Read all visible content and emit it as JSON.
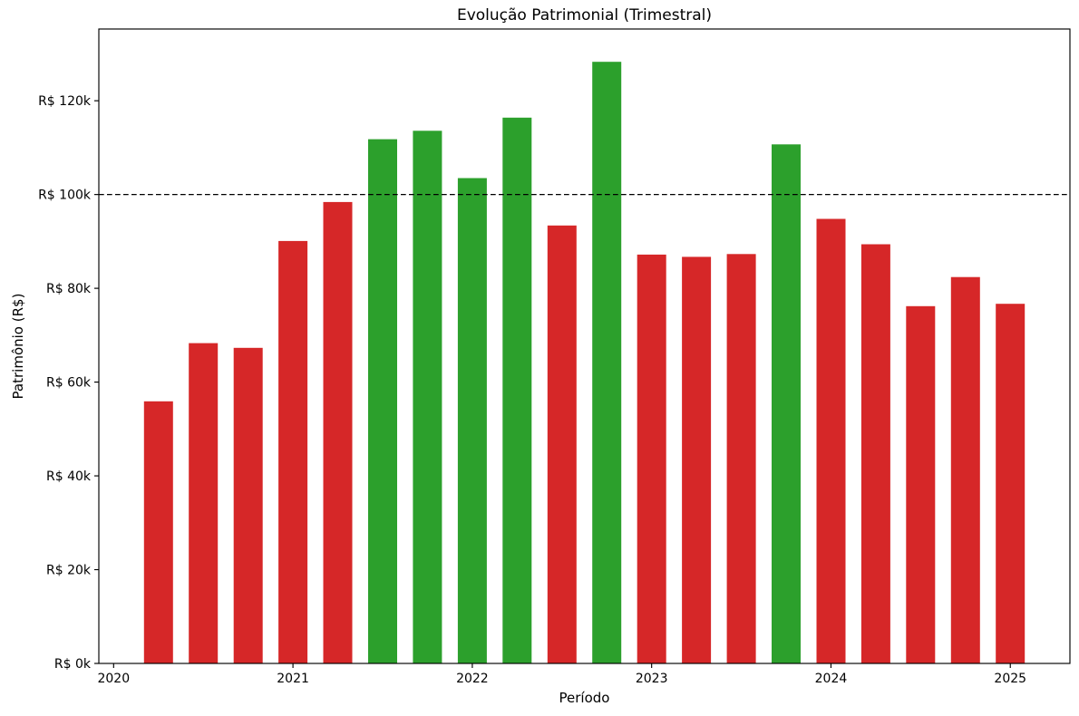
{
  "figure": {
    "background": "#ffffff"
  },
  "chart_data": {
    "type": "bar",
    "title": "Evolução Patrimonial (Trimestral)",
    "xlabel": "Período",
    "ylabel": "Patrimônio (R$)",
    "value_unit": "thousands of R$",
    "categories": [
      "2020Q2",
      "2020Q3",
      "2020Q4",
      "2021Q1",
      "2021Q2",
      "2021Q3",
      "2021Q4",
      "2022Q1",
      "2022Q2",
      "2022Q3",
      "2022Q4",
      "2023Q1",
      "2023Q2",
      "2023Q3",
      "2023Q4",
      "2024Q1",
      "2024Q2",
      "2024Q3",
      "2024Q4",
      "2025Q1"
    ],
    "values": [
      55.9,
      68.3,
      67.3,
      90.1,
      98.4,
      111.8,
      113.6,
      103.5,
      116.4,
      93.4,
      128.3,
      87.2,
      86.7,
      87.3,
      110.7,
      94.8,
      89.4,
      76.2,
      82.4,
      76.7
    ],
    "bar_color_above_threshold": "#2ca02c",
    "bar_color_below_threshold": "#d62728",
    "threshold_line": {
      "value": 100,
      "color": "#000000",
      "style": "dashed"
    },
    "x_tick_labels": [
      "2020",
      "2021",
      "2022",
      "2023",
      "2024",
      "2025"
    ],
    "y_tick_values": [
      0,
      20,
      40,
      60,
      80,
      100,
      120
    ],
    "y_tick_labels": [
      "R$ 0k",
      "R$ 20k",
      "R$ 40k",
      "R$ 60k",
      "R$ 80k",
      "R$ 100k",
      "R$ 120k"
    ],
    "ylim": [
      0,
      135.3
    ],
    "grid": false,
    "legend": "none",
    "axis_color": "#000000",
    "text_color": "#000000"
  }
}
